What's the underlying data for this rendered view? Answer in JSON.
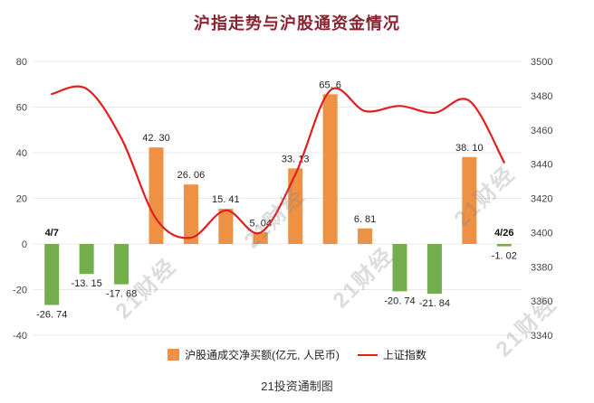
{
  "title": "沪指走势与沪股通资金情况",
  "caption": "21投资通制图",
  "watermark": "21财经",
  "legend": {
    "bar_label": "沪股通成交净买额(亿元, 人民币)",
    "line_label": "上证指数"
  },
  "colors": {
    "bar_positive": "#ED9144",
    "bar_negative": "#73AE4D",
    "line": "#E21F1F",
    "grid": "#E9E9E9",
    "axis_text": "#444444",
    "title": "#8B2230",
    "label_text": "#222222",
    "date_label": "#111111"
  },
  "chart_data": {
    "type": "bar+line",
    "first_date_label": "4/7",
    "last_date_label": "4/26",
    "bars": {
      "name": "沪股通成交净买额(亿元, 人民币)",
      "axis": "left",
      "values": [
        -26.74,
        -13.15,
        -17.68,
        42.3,
        26.06,
        15.41,
        5.04,
        33.13,
        65.6,
        6.81,
        -20.74,
        -21.84,
        38.1,
        -1.02
      ],
      "labels": [
        "-26. 74",
        "-13. 15",
        "-17. 68",
        "42. 30",
        "26. 06",
        "15. 41",
        "5. 04",
        "33. 13",
        "65. 6",
        "6. 81",
        "-20. 74",
        "-21. 84",
        "38. 10",
        "-1. 02"
      ]
    },
    "line": {
      "name": "上证指数",
      "axis": "right",
      "values": [
        3481,
        3484,
        3455,
        3408,
        3397,
        3413,
        3400,
        3434,
        3483,
        3471,
        3474,
        3470,
        3477,
        3441
      ]
    },
    "left_axis": {
      "min": -40,
      "max": 80,
      "ticks": [
        80,
        60,
        40,
        20,
        0,
        -20,
        -40
      ]
    },
    "right_axis": {
      "min": 3340,
      "max": 3500,
      "ticks": [
        3500,
        3480,
        3460,
        3440,
        3420,
        3400,
        3380,
        3360,
        3340
      ]
    },
    "grid": true,
    "legend_position": "bottom"
  }
}
